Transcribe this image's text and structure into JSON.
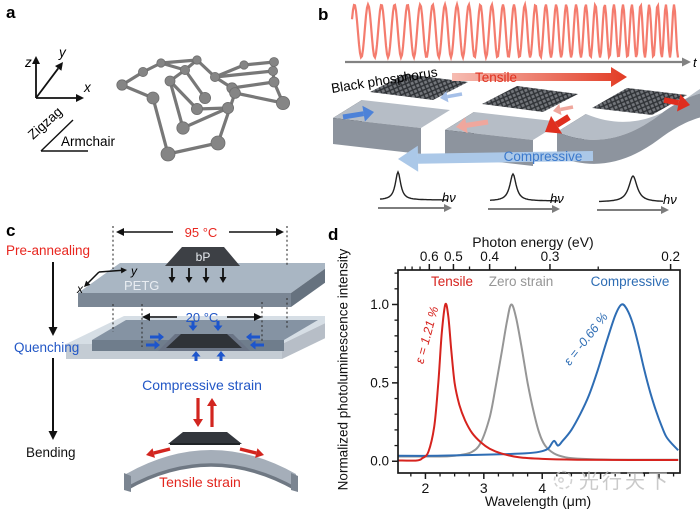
{
  "figure": {
    "panel_a": {
      "label": "a",
      "axis_x": "x",
      "axis_y": "y",
      "axis_z": "z",
      "direction_zigzag": "Zigzag",
      "direction_armchair": "Armchair"
    },
    "panel_b": {
      "label": "b",
      "time_axis": "t",
      "material_label": "Black phosphorus",
      "tensile_label": "Tensile",
      "compressive_label": "Compressive",
      "photon_label": "hν"
    },
    "panel_c": {
      "label": "c",
      "step_preannealing": "Pre-annealing",
      "step_quenching": "Quenching",
      "step_bending": "Bending",
      "temp_high": "95 °C",
      "temp_low": "20 °C",
      "flake_label": "bP",
      "substrate_label": "PETG",
      "axis_x": "x",
      "axis_y": "y",
      "compressive_strain": "Compressive strain",
      "tensile_strain": "Tensile strain",
      "red": "#e2261e",
      "blue": "#2257c6"
    },
    "panel_d": {
      "label": "d"
    }
  },
  "chart_data": {
    "type": "line",
    "top_axis_label": "Photon energy (eV)",
    "xlabel": "Wavelength (μm)",
    "ylabel": "Normalized photoluminescence intensity",
    "xlim": [
      1.53,
      6.36
    ],
    "ylim": [
      -0.075,
      1.22
    ],
    "x_ticks_major": [
      2,
      3,
      4,
      5,
      6
    ],
    "x_tick_labels": {
      "2": "2",
      "3": "3",
      "4": "4"
    },
    "x_minor_step": 0.25,
    "y_ticks_major": [
      0,
      0.5,
      1
    ],
    "y_tick_labels": [
      "0.0",
      "0.5",
      "1.0"
    ],
    "y_minor_step": 0.1,
    "top_ticks_major": [
      0.6,
      0.5,
      0.4,
      0.3,
      0.2
    ],
    "top_ticks_minor": [
      0.75,
      0.7,
      0.65,
      0.55,
      0.45,
      0.35,
      0.25
    ],
    "ev_um_conversion": 1.2398,
    "grid": false,
    "legend_position": "top-inside",
    "series": [
      {
        "name": "Tensile",
        "strain": "ε = 1.21 %",
        "color": "#d6231e",
        "points": [
          [
            1.53,
            0.005
          ],
          [
            1.85,
            0.005
          ],
          [
            1.95,
            0.02
          ],
          [
            2.05,
            0.06
          ],
          [
            2.15,
            0.22
          ],
          [
            2.22,
            0.5
          ],
          [
            2.28,
            0.82
          ],
          [
            2.34,
            1.0
          ],
          [
            2.39,
            0.93
          ],
          [
            2.44,
            0.72
          ],
          [
            2.5,
            0.5
          ],
          [
            2.58,
            0.36
          ],
          [
            2.68,
            0.26
          ],
          [
            2.8,
            0.18
          ],
          [
            2.95,
            0.12
          ],
          [
            3.1,
            0.08
          ],
          [
            3.3,
            0.05
          ],
          [
            3.6,
            0.025
          ],
          [
            4.0,
            0.015
          ],
          [
            4.6,
            0.01
          ],
          [
            5.5,
            0.008
          ],
          [
            6.33,
            0.008
          ]
        ]
      },
      {
        "name": "Zero strain",
        "strain": null,
        "color": "#969696",
        "points": [
          [
            1.53,
            0.03
          ],
          [
            2.0,
            0.03
          ],
          [
            2.4,
            0.032
          ],
          [
            2.6,
            0.04
          ],
          [
            2.8,
            0.06
          ],
          [
            2.95,
            0.12
          ],
          [
            3.1,
            0.28
          ],
          [
            3.2,
            0.47
          ],
          [
            3.3,
            0.68
          ],
          [
            3.4,
            0.9
          ],
          [
            3.47,
            1.0
          ],
          [
            3.55,
            0.92
          ],
          [
            3.65,
            0.72
          ],
          [
            3.75,
            0.5
          ],
          [
            3.85,
            0.32
          ],
          [
            3.95,
            0.18
          ],
          [
            4.05,
            0.1
          ],
          [
            4.2,
            0.05
          ],
          [
            4.4,
            0.025
          ],
          [
            4.7,
            0.015
          ],
          [
            5.2,
            0.01
          ],
          [
            6.33,
            0.01
          ]
        ]
      },
      {
        "name": "Compressive",
        "strain": "ε = -0.66 %",
        "color": "#2e6db4",
        "points": [
          [
            1.53,
            0.035
          ],
          [
            2.2,
            0.035
          ],
          [
            2.8,
            0.04
          ],
          [
            3.3,
            0.045
          ],
          [
            3.7,
            0.05
          ],
          [
            3.95,
            0.06
          ],
          [
            4.1,
            0.08
          ],
          [
            4.2,
            0.13
          ],
          [
            4.27,
            0.1
          ],
          [
            4.35,
            0.13
          ],
          [
            4.5,
            0.2
          ],
          [
            4.65,
            0.3
          ],
          [
            4.8,
            0.42
          ],
          [
            4.95,
            0.58
          ],
          [
            5.1,
            0.76
          ],
          [
            5.25,
            0.93
          ],
          [
            5.36,
            1.0
          ],
          [
            5.45,
            0.97
          ],
          [
            5.55,
            0.88
          ],
          [
            5.65,
            0.74
          ],
          [
            5.75,
            0.58
          ],
          [
            5.85,
            0.44
          ],
          [
            5.95,
            0.32
          ],
          [
            6.05,
            0.22
          ],
          [
            6.12,
            0.16
          ],
          [
            6.2,
            0.12
          ],
          [
            6.33,
            0.07
          ]
        ]
      }
    ]
  },
  "watermark": {
    "text": "光行天下"
  }
}
